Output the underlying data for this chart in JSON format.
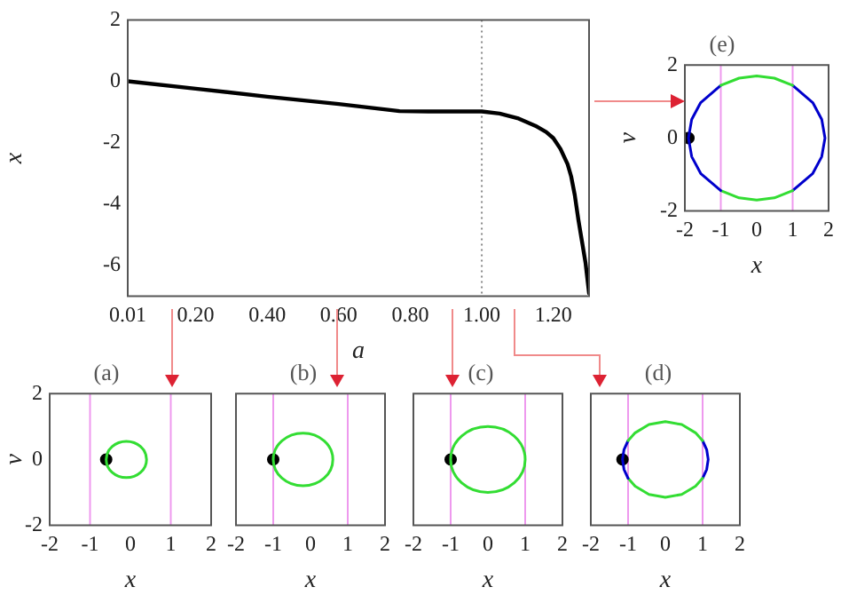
{
  "chart_data": [
    {
      "type": "line",
      "xlabel": "a",
      "ylabel": "x",
      "xlim": [
        0.01,
        1.3
      ],
      "xticks": [
        0.01,
        {
          "value": 0.2,
          "label": "0.20"
        },
        {
          "value": 0.4,
          "label": "0.40"
        },
        {
          "value": 0.6,
          "label": "0.60"
        },
        {
          "value": 0.8,
          "label": "0.80"
        },
        {
          "value": 1,
          "label": "1.00"
        },
        {
          "value": 1.2,
          "label": "1.20"
        }
      ],
      "ylim": [
        -7,
        2
      ],
      "yticks": [
        -6,
        -4,
        -2,
        0,
        2
      ],
      "grid": false,
      "ref_lines": [
        {
          "axis": "x",
          "value": 1,
          "color": "#888888",
          "line_style": "dotted"
        }
      ],
      "x": [
        0.01,
        0.2,
        0.4,
        0.6,
        0.77,
        0.85,
        0.95,
        1.0,
        1.05,
        1.1,
        1.15,
        1.18,
        1.2,
        1.22,
        1.24,
        1.25,
        1.26,
        1.27,
        1.28,
        1.29,
        1.3
      ],
      "series": [
        {
          "color": "#000000",
          "values": [
            0,
            -0.24,
            -0.5,
            -0.74,
            -0.97,
            -0.98,
            -0.98,
            -0.98,
            -1.05,
            -1.2,
            -1.45,
            -1.65,
            -1.85,
            -2.2,
            -2.7,
            -3.1,
            -3.7,
            -4.5,
            -5.2,
            -5.9,
            -6.9
          ]
        }
      ]
    },
    {
      "type": "scatter",
      "title": "(a)",
      "xlabel": "x",
      "ylabel": "v",
      "xlim": [
        -2,
        2
      ],
      "xticks": [
        -2,
        -1,
        0,
        1,
        2
      ],
      "ylim": [
        -2,
        2
      ],
      "yticks": [
        -2,
        0,
        2
      ],
      "grid": false,
      "ref_lines": [
        {
          "axis": "x",
          "value": -1,
          "color": "#ee99ee"
        },
        {
          "axis": "x",
          "value": 1,
          "color": "#ee99ee"
        }
      ],
      "series": [
        {
          "marker": "circle",
          "color": "#000000",
          "x": [
            -0.6
          ],
          "values": [
            0
          ]
        }
      ]
    },
    {
      "type": "scatter",
      "title": "(b)",
      "xlabel": "x",
      "xlim": [
        -2,
        2
      ],
      "xticks": [
        -2,
        -1,
        0,
        1,
        2
      ],
      "ylim": [
        -2,
        2
      ],
      "tick_labels": "x",
      "grid": false,
      "ref_lines": [
        {
          "axis": "x",
          "value": -1,
          "color": "#ee99ee"
        },
        {
          "axis": "x",
          "value": 1,
          "color": "#ee99ee"
        }
      ],
      "series": [
        {
          "marker": "circle",
          "color": "#000000",
          "x": [
            -1.0
          ],
          "values": [
            0
          ]
        }
      ]
    },
    {
      "type": "scatter",
      "title": "(c)",
      "xlabel": "x",
      "xlim": [
        -2,
        2
      ],
      "xticks": [
        -2,
        -1,
        0,
        1,
        2
      ],
      "ylim": [
        -2,
        2
      ],
      "tick_labels": "x",
      "grid": false,
      "ref_lines": [
        {
          "axis": "x",
          "value": -1,
          "color": "#ee99ee"
        },
        {
          "axis": "x",
          "value": 1,
          "color": "#ee99ee"
        }
      ],
      "series": [
        {
          "marker": "circle",
          "color": "#000000",
          "x": [
            -1.0
          ],
          "values": [
            0
          ]
        }
      ]
    },
    {
      "type": "line",
      "title": "(d)",
      "xlabel": "x",
      "xlim": [
        -2,
        2
      ],
      "xticks": [
        -2,
        -1,
        0,
        1,
        2
      ],
      "ylim": [
        -2,
        2
      ],
      "tick_labels": "x",
      "grid": false,
      "ref_lines": [
        {
          "axis": "x",
          "value": -1,
          "color": "#ee99ee"
        },
        {
          "axis": "x",
          "value": 1,
          "color": "#ee99ee"
        }
      ],
      "series": [
        {
          "color": "#33dd33",
          "x": [
            1,
            0.81,
            0.44,
            0,
            -0.44,
            -0.81,
            -1
          ],
          "values": [
            0.57,
            0.81,
            1.06,
            1.15,
            1.06,
            0.81,
            0.57
          ]
        },
        {
          "color": "#0000cc",
          "x": [
            -1,
            -1.11,
            -1.15,
            -1.11,
            -1
          ],
          "values": [
            0.57,
            0.3,
            0,
            -0.3,
            -0.57
          ]
        },
        {
          "color": "#33dd33",
          "x": [
            -1,
            -0.81,
            -0.44,
            0,
            0.44,
            0.81,
            1
          ],
          "values": [
            -0.57,
            -0.81,
            -1.06,
            -1.15,
            -1.06,
            -0.81,
            -0.57
          ]
        },
        {
          "color": "#0000cc",
          "x": [
            1,
            1.11,
            1.15,
            1.11,
            1
          ],
          "values": [
            -0.57,
            -0.3,
            0,
            0.3,
            0.57
          ]
        },
        {
          "type": "scatter",
          "marker": "circle",
          "color": "#000000",
          "x": [
            -1.15
          ],
          "values": [
            0
          ]
        }
      ]
    },
    {
      "type": "line",
      "title": "(e)",
      "xlabel": "x",
      "ylabel": "v",
      "xlim": [
        -2,
        2
      ],
      "xticks": [
        -2,
        -1,
        0,
        1,
        2
      ],
      "ylim": [
        -2,
        2
      ],
      "yticks": [
        -2,
        0,
        2
      ],
      "grid": false,
      "ref_lines": [
        {
          "axis": "x",
          "value": -1,
          "color": "#ee99ee"
        },
        {
          "axis": "x",
          "value": 1,
          "color": "#ee99ee"
        }
      ],
      "series": [
        {
          "color": "#33dd33",
          "x": [
            1,
            0.49,
            0,
            -0.49,
            -1
          ],
          "values": [
            1.44,
            1.64,
            1.7,
            1.64,
            1.44
          ]
        },
        {
          "color": "#0000cc",
          "x": [
            -1,
            -1.56,
            -1.81,
            -1.9,
            -1.81,
            -1.56,
            -1
          ],
          "values": [
            1.44,
            0.97,
            0.51,
            0,
            -0.51,
            -0.97,
            -1.44
          ]
        },
        {
          "color": "#33dd33",
          "x": [
            -1,
            -0.49,
            0,
            0.49,
            1
          ],
          "values": [
            -1.44,
            -1.64,
            -1.7,
            -1.64,
            -1.44
          ]
        },
        {
          "color": "#0000cc",
          "x": [
            1,
            1.56,
            1.81,
            1.9,
            1.81,
            1.56,
            1
          ],
          "values": [
            -1.44,
            -0.97,
            -0.51,
            0,
            0.51,
            0.97,
            1.44
          ]
        },
        {
          "type": "scatter",
          "marker": "circle",
          "color": "#000000",
          "x": [
            -1.9
          ],
          "values": [
            0
          ]
        }
      ]
    }
  ]
}
